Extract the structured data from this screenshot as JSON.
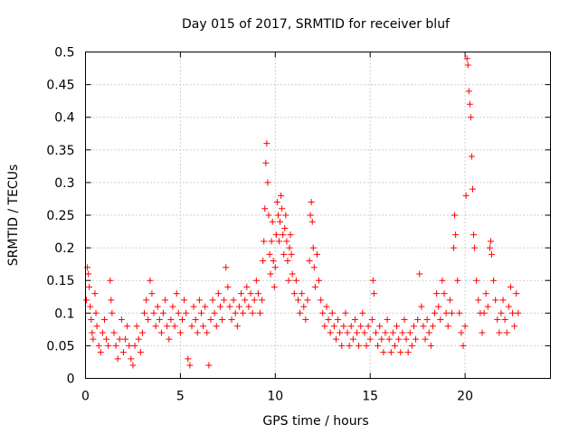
{
  "chart_data": {
    "type": "scatter",
    "title": "Day 015 of 2017, SRMTID for receiver bluf",
    "xlabel": "GPS time / hours",
    "ylabel": "SRMTID / TECUs",
    "xlim": [
      0,
      24.5
    ],
    "ylim": [
      0,
      0.5
    ],
    "xticks": [
      0,
      5,
      10,
      15,
      20
    ],
    "xtick_labels": [
      "0",
      "5",
      "10",
      "15",
      "20"
    ],
    "yticks": [
      0,
      0.05,
      0.1,
      0.15,
      0.2,
      0.25,
      0.3,
      0.35,
      0.4,
      0.45,
      0.5
    ],
    "ytick_labels": [
      "0",
      "0.05",
      "0.1",
      "0.15",
      "0.2",
      "0.25",
      "0.3",
      "0.35",
      "0.4",
      "0.45",
      "0.5"
    ],
    "grid": true,
    "marker": "plus",
    "color": "#ff0000",
    "series": [
      {
        "name": "SRMTID",
        "points": [
          [
            0.05,
            0.12
          ],
          [
            0.1,
            0.17
          ],
          [
            0.15,
            0.16
          ],
          [
            0.2,
            0.14
          ],
          [
            0.25,
            0.11
          ],
          [
            0.3,
            0.09
          ],
          [
            0.35,
            0.07
          ],
          [
            0.4,
            0.06
          ],
          [
            0.5,
            0.13
          ],
          [
            0.55,
            0.1
          ],
          [
            0.6,
            0.08
          ],
          [
            0.7,
            0.05
          ],
          [
            0.8,
            0.04
          ],
          [
            0.9,
            0.07
          ],
          [
            1.0,
            0.09
          ],
          [
            1.1,
            0.06
          ],
          [
            1.2,
            0.05
          ],
          [
            1.3,
            0.15
          ],
          [
            1.35,
            0.12
          ],
          [
            1.4,
            0.1
          ],
          [
            1.5,
            0.07
          ],
          [
            1.6,
            0.05
          ],
          [
            1.7,
            0.03
          ],
          [
            1.8,
            0.06
          ],
          [
            1.9,
            0.09
          ],
          [
            2.0,
            0.04
          ],
          [
            2.1,
            0.06
          ],
          [
            2.2,
            0.08
          ],
          [
            2.3,
            0.05
          ],
          [
            2.4,
            0.03
          ],
          [
            2.5,
            0.02
          ],
          [
            2.6,
            0.05
          ],
          [
            2.7,
            0.08
          ],
          [
            2.8,
            0.06
          ],
          [
            2.9,
            0.04
          ],
          [
            3.0,
            0.07
          ],
          [
            3.1,
            0.1
          ],
          [
            3.2,
            0.12
          ],
          [
            3.3,
            0.09
          ],
          [
            3.4,
            0.15
          ],
          [
            3.5,
            0.13
          ],
          [
            3.6,
            0.1
          ],
          [
            3.7,
            0.08
          ],
          [
            3.8,
            0.11
          ],
          [
            3.9,
            0.09
          ],
          [
            4.0,
            0.07
          ],
          [
            4.1,
            0.1
          ],
          [
            4.2,
            0.12
          ],
          [
            4.3,
            0.08
          ],
          [
            4.4,
            0.06
          ],
          [
            4.5,
            0.09
          ],
          [
            4.6,
            0.11
          ],
          [
            4.7,
            0.08
          ],
          [
            4.8,
            0.13
          ],
          [
            4.9,
            0.1
          ],
          [
            5.0,
            0.07
          ],
          [
            5.1,
            0.09
          ],
          [
            5.2,
            0.12
          ],
          [
            5.3,
            0.1
          ],
          [
            5.4,
            0.03
          ],
          [
            5.5,
            0.02
          ],
          [
            5.6,
            0.08
          ],
          [
            5.7,
            0.11
          ],
          [
            5.8,
            0.09
          ],
          [
            5.9,
            0.07
          ],
          [
            6.0,
            0.12
          ],
          [
            6.1,
            0.1
          ],
          [
            6.2,
            0.08
          ],
          [
            6.3,
            0.11
          ],
          [
            6.4,
            0.07
          ],
          [
            6.5,
            0.02
          ],
          [
            6.6,
            0.09
          ],
          [
            6.7,
            0.12
          ],
          [
            6.8,
            0.1
          ],
          [
            6.9,
            0.08
          ],
          [
            7.0,
            0.13
          ],
          [
            7.1,
            0.11
          ],
          [
            7.2,
            0.09
          ],
          [
            7.3,
            0.12
          ],
          [
            7.4,
            0.17
          ],
          [
            7.5,
            0.14
          ],
          [
            7.6,
            0.11
          ],
          [
            7.7,
            0.09
          ],
          [
            7.8,
            0.12
          ],
          [
            7.9,
            0.1
          ],
          [
            8.0,
            0.08
          ],
          [
            8.1,
            0.11
          ],
          [
            8.2,
            0.13
          ],
          [
            8.3,
            0.1
          ],
          [
            8.4,
            0.12
          ],
          [
            8.5,
            0.14
          ],
          [
            8.6,
            0.11
          ],
          [
            8.7,
            0.13
          ],
          [
            8.8,
            0.1
          ],
          [
            8.9,
            0.12
          ],
          [
            9.0,
            0.15
          ],
          [
            9.1,
            0.13
          ],
          [
            9.2,
            0.1
          ],
          [
            9.3,
            0.12
          ],
          [
            9.35,
            0.18
          ],
          [
            9.4,
            0.21
          ],
          [
            9.45,
            0.26
          ],
          [
            9.5,
            0.33
          ],
          [
            9.55,
            0.36
          ],
          [
            9.6,
            0.3
          ],
          [
            9.65,
            0.25
          ],
          [
            9.7,
            0.19
          ],
          [
            9.75,
            0.16
          ],
          [
            9.8,
            0.21
          ],
          [
            9.85,
            0.24
          ],
          [
            9.9,
            0.18
          ],
          [
            9.95,
            0.14
          ],
          [
            10.0,
            0.17
          ],
          [
            10.05,
            0.22
          ],
          [
            10.1,
            0.27
          ],
          [
            10.15,
            0.25
          ],
          [
            10.2,
            0.21
          ],
          [
            10.25,
            0.24
          ],
          [
            10.3,
            0.28
          ],
          [
            10.35,
            0.26
          ],
          [
            10.4,
            0.22
          ],
          [
            10.45,
            0.19
          ],
          [
            10.5,
            0.23
          ],
          [
            10.55,
            0.25
          ],
          [
            10.6,
            0.21
          ],
          [
            10.65,
            0.18
          ],
          [
            10.7,
            0.15
          ],
          [
            10.75,
            0.2
          ],
          [
            10.8,
            0.22
          ],
          [
            10.85,
            0.19
          ],
          [
            10.9,
            0.16
          ],
          [
            11.0,
            0.13
          ],
          [
            11.1,
            0.15
          ],
          [
            11.2,
            0.12
          ],
          [
            11.3,
            0.1
          ],
          [
            11.4,
            0.13
          ],
          [
            11.5,
            0.11
          ],
          [
            11.6,
            0.09
          ],
          [
            11.7,
            0.12
          ],
          [
            11.8,
            0.18
          ],
          [
            11.85,
            0.25
          ],
          [
            11.9,
            0.27
          ],
          [
            11.95,
            0.24
          ],
          [
            12.0,
            0.2
          ],
          [
            12.05,
            0.17
          ],
          [
            12.1,
            0.14
          ],
          [
            12.2,
            0.19
          ],
          [
            12.3,
            0.15
          ],
          [
            12.4,
            0.12
          ],
          [
            12.5,
            0.1
          ],
          [
            12.6,
            0.08
          ],
          [
            12.7,
            0.11
          ],
          [
            12.8,
            0.09
          ],
          [
            12.9,
            0.07
          ],
          [
            13.0,
            0.1
          ],
          [
            13.1,
            0.08
          ],
          [
            13.2,
            0.06
          ],
          [
            13.3,
            0.09
          ],
          [
            13.4,
            0.07
          ],
          [
            13.5,
            0.05
          ],
          [
            13.6,
            0.08
          ],
          [
            13.7,
            0.1
          ],
          [
            13.8,
            0.07
          ],
          [
            13.9,
            0.05
          ],
          [
            14.0,
            0.08
          ],
          [
            14.1,
            0.06
          ],
          [
            14.2,
            0.09
          ],
          [
            14.3,
            0.07
          ],
          [
            14.4,
            0.05
          ],
          [
            14.5,
            0.08
          ],
          [
            14.6,
            0.1
          ],
          [
            14.7,
            0.07
          ],
          [
            14.8,
            0.05
          ],
          [
            14.9,
            0.08
          ],
          [
            15.0,
            0.06
          ],
          [
            15.1,
            0.09
          ],
          [
            15.15,
            0.15
          ],
          [
            15.2,
            0.13
          ],
          [
            15.3,
            0.07
          ],
          [
            15.4,
            0.05
          ],
          [
            15.5,
            0.08
          ],
          [
            15.6,
            0.06
          ],
          [
            15.7,
            0.04
          ],
          [
            15.8,
            0.07
          ],
          [
            15.9,
            0.09
          ],
          [
            16.0,
            0.06
          ],
          [
            16.1,
            0.04
          ],
          [
            16.2,
            0.07
          ],
          [
            16.3,
            0.05
          ],
          [
            16.4,
            0.08
          ],
          [
            16.5,
            0.06
          ],
          [
            16.6,
            0.04
          ],
          [
            16.7,
            0.07
          ],
          [
            16.8,
            0.09
          ],
          [
            16.9,
            0.06
          ],
          [
            17.0,
            0.04
          ],
          [
            17.1,
            0.07
          ],
          [
            17.2,
            0.05
          ],
          [
            17.3,
            0.08
          ],
          [
            17.4,
            0.06
          ],
          [
            17.5,
            0.09
          ],
          [
            17.6,
            0.16
          ],
          [
            17.7,
            0.11
          ],
          [
            17.8,
            0.08
          ],
          [
            17.9,
            0.06
          ],
          [
            18.0,
            0.09
          ],
          [
            18.1,
            0.07
          ],
          [
            18.2,
            0.05
          ],
          [
            18.3,
            0.08
          ],
          [
            18.4,
            0.1
          ],
          [
            18.5,
            0.13
          ],
          [
            18.6,
            0.11
          ],
          [
            18.7,
            0.09
          ],
          [
            18.8,
            0.15
          ],
          [
            18.9,
            0.13
          ],
          [
            19.0,
            0.1
          ],
          [
            19.1,
            0.08
          ],
          [
            19.2,
            0.12
          ],
          [
            19.3,
            0.1
          ],
          [
            19.4,
            0.2
          ],
          [
            19.45,
            0.25
          ],
          [
            19.5,
            0.22
          ],
          [
            19.6,
            0.15
          ],
          [
            19.7,
            0.1
          ],
          [
            19.8,
            0.07
          ],
          [
            19.9,
            0.05
          ],
          [
            20.0,
            0.08
          ],
          [
            20.05,
            0.28
          ],
          [
            20.1,
            0.49
          ],
          [
            20.15,
            0.48
          ],
          [
            20.2,
            0.44
          ],
          [
            20.25,
            0.42
          ],
          [
            20.3,
            0.4
          ],
          [
            20.35,
            0.34
          ],
          [
            20.4,
            0.29
          ],
          [
            20.45,
            0.22
          ],
          [
            20.5,
            0.2
          ],
          [
            20.6,
            0.15
          ],
          [
            20.7,
            0.12
          ],
          [
            20.8,
            0.1
          ],
          [
            20.9,
            0.07
          ],
          [
            21.0,
            0.1
          ],
          [
            21.1,
            0.13
          ],
          [
            21.2,
            0.11
          ],
          [
            21.3,
            0.2
          ],
          [
            21.35,
            0.21
          ],
          [
            21.4,
            0.19
          ],
          [
            21.5,
            0.15
          ],
          [
            21.6,
            0.12
          ],
          [
            21.7,
            0.09
          ],
          [
            21.8,
            0.07
          ],
          [
            21.9,
            0.1
          ],
          [
            22.0,
            0.12
          ],
          [
            22.1,
            0.09
          ],
          [
            22.2,
            0.07
          ],
          [
            22.3,
            0.11
          ],
          [
            22.4,
            0.14
          ],
          [
            22.5,
            0.1
          ],
          [
            22.6,
            0.08
          ],
          [
            22.7,
            0.13
          ],
          [
            22.8,
            0.1
          ]
        ]
      }
    ]
  }
}
